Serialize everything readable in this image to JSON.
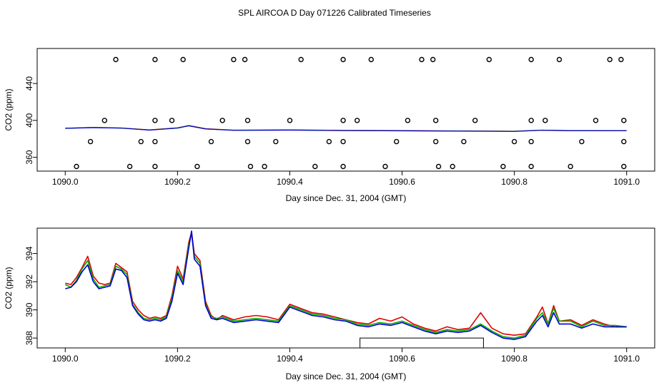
{
  "title": "SPL AIRCOA D  Day 071226  Calibrated Timeseries",
  "colors": {
    "red": "#e00000",
    "green": "#00b000",
    "blue": "#0000d0",
    "frame": "#000000"
  },
  "chart_data": [
    {
      "id": "top",
      "type": "scatter",
      "xlabel": "Day since Dec. 31, 2004 (GMT)",
      "ylabel": "CO2 (ppm)",
      "xlim": [
        1089.95,
        1091.05
      ],
      "ylim": [
        345,
        478
      ],
      "xticks": [
        1090.0,
        1090.2,
        1090.4,
        1090.6,
        1090.8,
        1091.0
      ],
      "xtick_labels": [
        "1090.0",
        "1090.2",
        "1090.4",
        "1090.6",
        "1090.8",
        "1091.0"
      ],
      "yticks": [
        360,
        400,
        440
      ],
      "ytick_labels": [
        "360",
        "400",
        "440"
      ],
      "points": {
        "y_level_466": [
          1090.09,
          1090.16,
          1090.21,
          1090.3,
          1090.32,
          1090.42,
          1090.495,
          1090.545,
          1090.635,
          1090.655,
          1090.755,
          1090.83,
          1090.88,
          1090.97,
          1090.99
        ],
        "y_level_400": [
          1090.07,
          1090.16,
          1090.19,
          1090.28,
          1090.325,
          1090.4,
          1090.495,
          1090.52,
          1090.61,
          1090.66,
          1090.73,
          1090.83,
          1090.855,
          1090.945,
          1090.995
        ],
        "y_level_377": [
          1090.045,
          1090.135,
          1090.16,
          1090.26,
          1090.325,
          1090.375,
          1090.47,
          1090.495,
          1090.59,
          1090.66,
          1090.71,
          1090.8,
          1090.83,
          1090.92,
          1090.995
        ],
        "y_level_350": [
          1090.02,
          1090.115,
          1090.16,
          1090.235,
          1090.33,
          1090.355,
          1090.445,
          1090.495,
          1090.57,
          1090.665,
          1090.69,
          1090.78,
          1090.83,
          1090.9,
          1090.995
        ]
      },
      "series": [
        {
          "name": "co2_red",
          "color": "#e00000",
          "x": [
            1090.0,
            1090.05,
            1090.1,
            1090.15,
            1090.2,
            1090.22,
            1090.25,
            1090.3,
            1090.4,
            1090.5,
            1090.6,
            1090.7,
            1090.8,
            1090.85,
            1090.9,
            1091.0
          ],
          "y": [
            391.5,
            392.5,
            391.8,
            389.8,
            392.0,
            394.5,
            391.0,
            389.5,
            389.8,
            389.2,
            389.0,
            388.6,
            388.3,
            389.5,
            389.0,
            388.8
          ]
        },
        {
          "name": "co2_green",
          "color": "#00b000",
          "x": [
            1090.0,
            1090.05,
            1090.1,
            1090.15,
            1090.2,
            1090.22,
            1090.25,
            1090.3,
            1090.4,
            1090.5,
            1090.6,
            1090.7,
            1090.8,
            1090.85,
            1090.9,
            1091.0
          ],
          "y": [
            391.5,
            392.3,
            391.7,
            389.6,
            391.8,
            394.3,
            390.8,
            389.3,
            389.6,
            389.0,
            388.8,
            388.5,
            388.2,
            389.4,
            388.9,
            388.8
          ]
        },
        {
          "name": "co2_blue",
          "color": "#0000d0",
          "x": [
            1090.0,
            1090.05,
            1090.1,
            1090.15,
            1090.2,
            1090.22,
            1090.25,
            1090.3,
            1090.4,
            1090.5,
            1090.6,
            1090.7,
            1090.8,
            1090.85,
            1090.9,
            1091.0
          ],
          "y": [
            391.4,
            392.1,
            391.6,
            389.5,
            391.6,
            394.1,
            390.7,
            389.2,
            389.5,
            388.9,
            388.7,
            388.4,
            388.1,
            389.3,
            388.8,
            388.8
          ]
        }
      ]
    },
    {
      "id": "bottom",
      "type": "line",
      "xlabel": "Day since Dec. 31, 2004 (GMT)",
      "ylabel": "CO2 (ppm)",
      "xlim": [
        1089.95,
        1091.05
      ],
      "ylim": [
        387.3,
        395.8
      ],
      "xticks": [
        1090.0,
        1090.2,
        1090.4,
        1090.6,
        1090.8,
        1091.0
      ],
      "xtick_labels": [
        "1090.0",
        "1090.2",
        "1090.4",
        "1090.6",
        "1090.8",
        "1091.0"
      ],
      "yticks": [
        388,
        390,
        392,
        394
      ],
      "ytick_labels": [
        "388",
        "390",
        "392",
        "394"
      ],
      "gap_box": {
        "x_start": 1090.525,
        "x_end": 1090.745,
        "y_top": 388.0,
        "y_bottom": 387.3
      },
      "x": [
        1090.0,
        1090.01,
        1090.02,
        1090.03,
        1090.04,
        1090.05,
        1090.06,
        1090.07,
        1090.08,
        1090.09,
        1090.1,
        1090.11,
        1090.12,
        1090.13,
        1090.14,
        1090.15,
        1090.16,
        1090.17,
        1090.18,
        1090.19,
        1090.2,
        1090.21,
        1090.22,
        1090.225,
        1090.23,
        1090.24,
        1090.25,
        1090.26,
        1090.27,
        1090.28,
        1090.3,
        1090.32,
        1090.34,
        1090.36,
        1090.38,
        1090.4,
        1090.42,
        1090.44,
        1090.46,
        1090.48,
        1090.5,
        1090.52,
        1090.54,
        1090.56,
        1090.58,
        1090.6,
        1090.62,
        1090.64,
        1090.66,
        1090.68,
        1090.7,
        1090.72,
        1090.74,
        1090.76,
        1090.78,
        1090.8,
        1090.82,
        1090.84,
        1090.85,
        1090.86,
        1090.87,
        1090.88,
        1090.9,
        1090.92,
        1090.94,
        1090.96,
        1090.98,
        1091.0
      ],
      "series": [
        {
          "name": "red",
          "color": "#e00000",
          "y": [
            391.9,
            391.8,
            392.3,
            393.0,
            393.8,
            392.4,
            391.9,
            391.8,
            391.9,
            393.3,
            393.0,
            392.7,
            390.6,
            390.0,
            389.6,
            389.4,
            389.5,
            389.4,
            389.6,
            391.0,
            393.1,
            392.2,
            394.8,
            395.5,
            394.0,
            393.5,
            390.6,
            389.6,
            389.3,
            389.6,
            389.3,
            389.5,
            389.6,
            389.5,
            389.3,
            390.4,
            390.1,
            389.8,
            389.7,
            389.5,
            389.3,
            389.1,
            389.0,
            389.4,
            389.2,
            389.5,
            389.0,
            388.7,
            388.5,
            388.8,
            388.6,
            388.7,
            389.8,
            388.7,
            388.3,
            388.2,
            388.3,
            389.5,
            390.2,
            389.0,
            390.3,
            389.2,
            389.3,
            388.9,
            389.3,
            389.0,
            388.8,
            388.8
          ]
        },
        {
          "name": "green",
          "color": "#00b000",
          "y": [
            391.8,
            391.6,
            392.1,
            392.9,
            393.5,
            392.2,
            391.6,
            391.7,
            391.8,
            393.1,
            392.9,
            392.5,
            390.4,
            389.8,
            389.4,
            389.3,
            389.4,
            389.3,
            389.5,
            390.8,
            392.8,
            392.0,
            394.6,
            395.4,
            393.8,
            393.3,
            390.4,
            389.5,
            389.4,
            389.5,
            389.2,
            389.3,
            389.4,
            389.3,
            389.2,
            390.3,
            390.0,
            389.7,
            389.6,
            389.4,
            389.3,
            389.0,
            388.9,
            389.1,
            389.0,
            389.2,
            388.9,
            388.6,
            388.4,
            388.6,
            388.5,
            388.6,
            389.0,
            388.5,
            388.1,
            388.0,
            388.2,
            389.4,
            389.8,
            389.0,
            390.1,
            389.2,
            389.2,
            388.8,
            389.2,
            388.9,
            388.9,
            388.8
          ]
        },
        {
          "name": "blue",
          "color": "#0000d0",
          "y": [
            391.5,
            391.6,
            392.0,
            392.7,
            393.2,
            392.0,
            391.5,
            391.6,
            391.7,
            392.9,
            392.8,
            392.3,
            390.3,
            389.7,
            389.3,
            389.2,
            389.3,
            389.2,
            389.4,
            390.6,
            392.6,
            391.8,
            394.4,
            395.6,
            393.6,
            393.1,
            390.3,
            389.4,
            389.3,
            389.4,
            389.1,
            389.2,
            389.3,
            389.2,
            389.1,
            390.2,
            389.9,
            389.6,
            389.5,
            389.3,
            389.2,
            388.9,
            388.8,
            389.0,
            388.9,
            389.1,
            388.8,
            388.5,
            388.3,
            388.5,
            388.4,
            388.5,
            388.9,
            388.4,
            388.0,
            387.9,
            388.1,
            389.2,
            389.6,
            388.8,
            389.8,
            389.0,
            389.0,
            388.7,
            389.0,
            388.8,
            388.8,
            388.8
          ]
        }
      ]
    }
  ]
}
